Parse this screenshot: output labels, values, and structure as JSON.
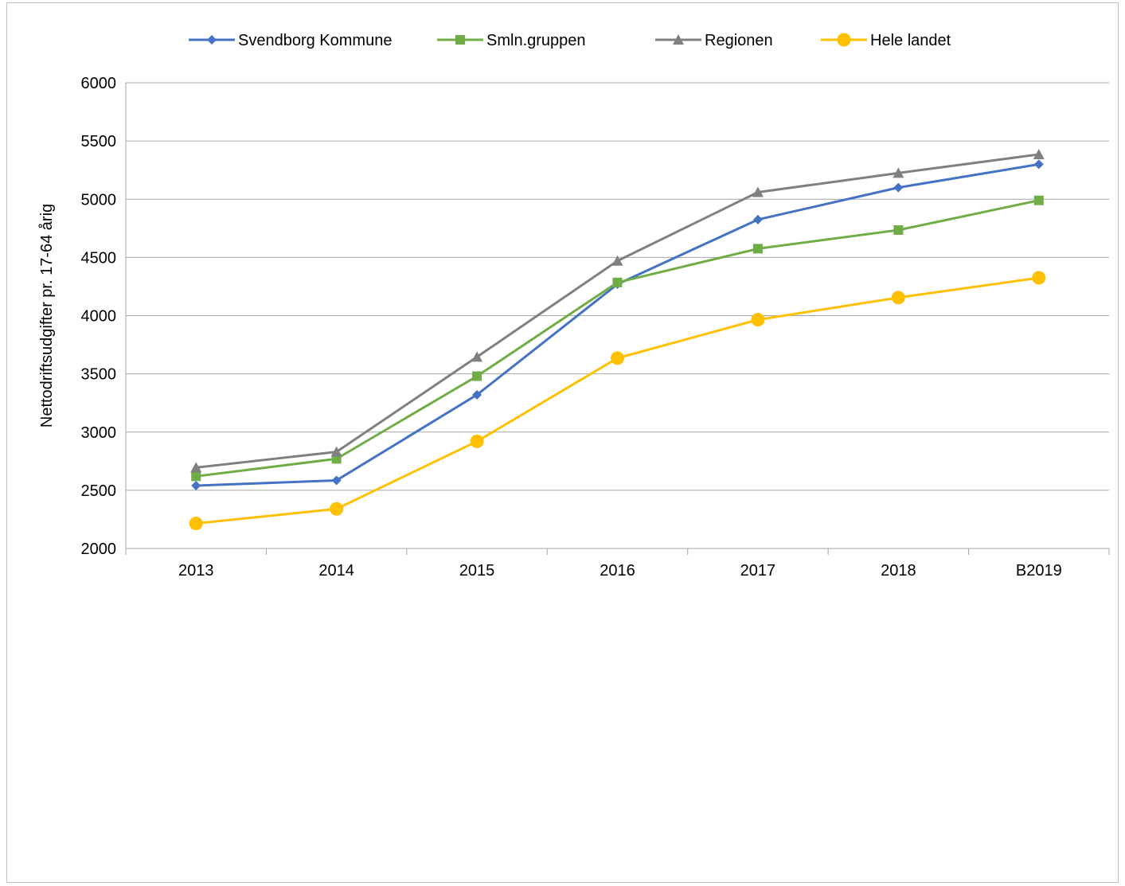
{
  "chart_data": {
    "type": "line",
    "title": "",
    "xlabel": "",
    "ylabel": "Nettodriftsudgifter pr. 17-64 årig",
    "categories": [
      "2013",
      "2014",
      "2015",
      "2016",
      "2017",
      "2018",
      "B2019"
    ],
    "ylim": [
      2000,
      6000
    ],
    "yticks": [
      "2000",
      "2500",
      "3000",
      "3500",
      "4000",
      "4500",
      "5000",
      "5500",
      "6000"
    ],
    "grid": true,
    "legend_position": "top",
    "series": [
      {
        "name": "Svendborg Kommune",
        "color": "#4472c4",
        "marker": "diamond",
        "values": [
          2540,
          2585,
          3320,
          4270,
          4825,
          5100,
          5300
        ]
      },
      {
        "name": "Smln.gruppen",
        "color": "#70ad47",
        "marker": "square",
        "values": [
          2620,
          2770,
          3480,
          4285,
          4575,
          4735,
          4990
        ]
      },
      {
        "name": "Regionen",
        "color": "#808080",
        "marker": "triangle",
        "values": [
          2695,
          2830,
          3645,
          4470,
          5060,
          5225,
          5385
        ]
      },
      {
        "name": "Hele landet",
        "color": "#ffc000",
        "marker": "circle",
        "values": [
          2215,
          2340,
          2920,
          3635,
          3965,
          4155,
          4325
        ]
      }
    ]
  }
}
